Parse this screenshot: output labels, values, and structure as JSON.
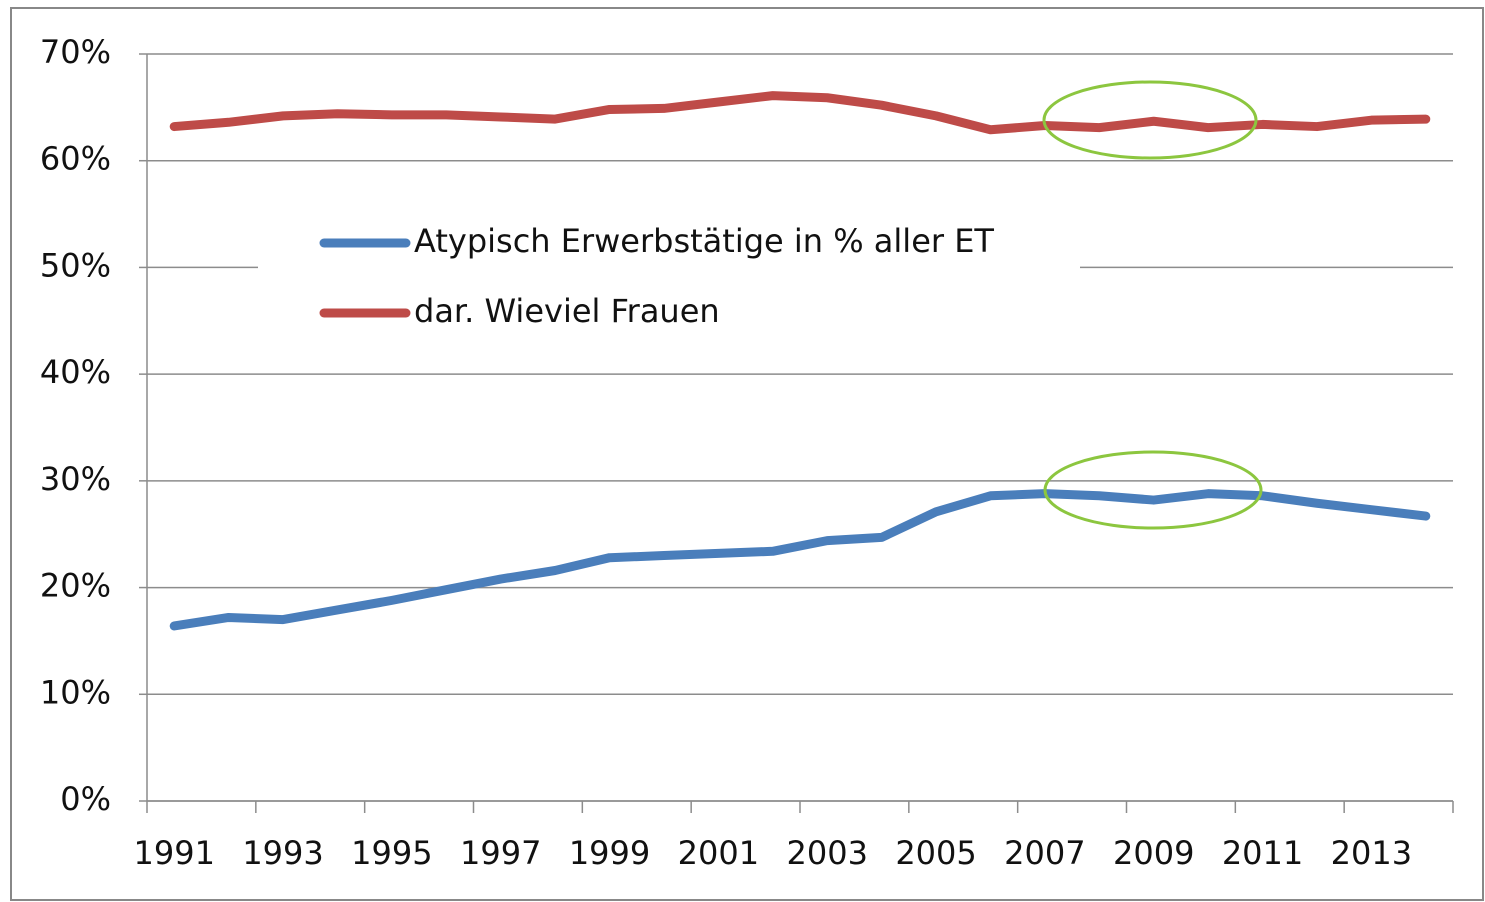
{
  "chart_data": {
    "type": "line",
    "categories": [
      "1991",
      null,
      "1993",
      null,
      "1995",
      null,
      "1997",
      null,
      "1999",
      null,
      "2001",
      null,
      "2003",
      null,
      "2005",
      null,
      "2007",
      null,
      "2009",
      null,
      "2011",
      null,
      "2013",
      null
    ],
    "series": [
      {
        "name": "Atypisch Erwerbstätige in % aller ET",
        "color": "#4a7ebb",
        "values": [
          16.4,
          17.2,
          17.0,
          17.9,
          18.8,
          19.8,
          20.8,
          21.6,
          22.8,
          23.0,
          23.2,
          23.4,
          24.4,
          24.7,
          27.1,
          28.6,
          28.8,
          28.6,
          28.2,
          28.8,
          28.6,
          27.9,
          27.3,
          26.7
        ]
      },
      {
        "name": "dar. Wieviel Frauen",
        "color": "#be4b48",
        "values": [
          63.2,
          63.6,
          64.2,
          64.4,
          64.3,
          64.3,
          64.1,
          63.9,
          64.8,
          64.9,
          65.5,
          66.1,
          65.9,
          65.2,
          64.2,
          62.9,
          63.3,
          63.1,
          63.7,
          63.1,
          63.4,
          63.2,
          63.8,
          63.9
        ]
      }
    ],
    "ylim": [
      0,
      70
    ],
    "yticks": [
      {
        "value": 0,
        "label": "0%"
      },
      {
        "value": 10,
        "label": "10%"
      },
      {
        "value": 20,
        "label": "20%"
      },
      {
        "value": 30,
        "label": "30%"
      },
      {
        "value": 40,
        "label": "40%"
      },
      {
        "value": 50,
        "label": "50%"
      },
      {
        "value": 60,
        "label": "60%"
      },
      {
        "value": 70,
        "label": "70%"
      }
    ],
    "grid": true,
    "legend": "center"
  }
}
